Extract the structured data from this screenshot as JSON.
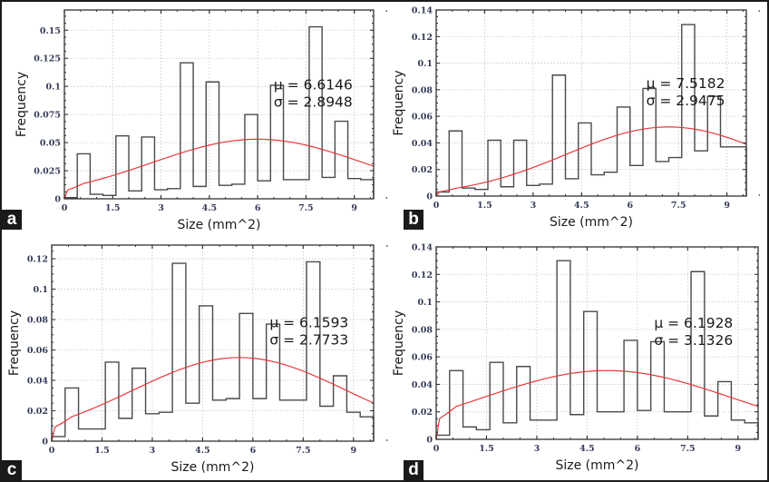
{
  "chart_data": [
    {
      "panel": "a",
      "type": "histogram",
      "xlabel": "Size (mm^2)",
      "ylabel": "Frequency",
      "xlim": [
        0,
        9.6
      ],
      "ylim": [
        0,
        0.168
      ],
      "xticks": [
        0,
        1.5,
        3,
        4.5,
        6,
        7.5,
        9
      ],
      "xtick_labels": [
        "0",
        "1.5",
        "3",
        "4.5",
        "6",
        "7.5",
        "9"
      ],
      "yticks": [
        0,
        0.025,
        0.05,
        0.075,
        0.1,
        0.125,
        0.15
      ],
      "ytick_labels": [
        "0",
        "0.025",
        "0.05",
        "0.075",
        "0.1",
        "0.125",
        "0.15"
      ],
      "grid": true,
      "bin_width": 0.4,
      "values": [
        0.001,
        0.04,
        0.004,
        0.003,
        0.056,
        0.007,
        0.055,
        0.008,
        0.009,
        0.121,
        0.011,
        0.104,
        0.012,
        0.013,
        0.075,
        0.016,
        0.101,
        0.017,
        0.017,
        0.153,
        0.019,
        0.069,
        0.018,
        0.017
      ],
      "fit_curve": {
        "peak": 0.053,
        "center": 6.0,
        "spread": 3.28
      },
      "annotations": [
        "μ = 6.6146",
        "σ = 2.8948"
      ]
    },
    {
      "panel": "b",
      "type": "histogram",
      "xlabel": "Size (mm^2)",
      "ylabel": "Frequency",
      "xlim": [
        0,
        9.6
      ],
      "ylim": [
        0,
        0.14
      ],
      "xticks": [
        0,
        1.5,
        3,
        4.5,
        6,
        7.5,
        9
      ],
      "xtick_labels": [
        "0",
        "1.5",
        "3",
        "4.5",
        "6",
        "7.5",
        "9"
      ],
      "yticks": [
        0,
        0.02,
        0.04,
        0.06,
        0.08,
        0.1,
        0.12,
        0.14
      ],
      "ytick_labels": [
        "0",
        "0.02",
        "0.04",
        "0.06",
        "0.08",
        "0.1",
        "0.12",
        "0.14"
      ],
      "grid": true,
      "bin_width": 0.4,
      "values": [
        0.003,
        0.049,
        0.006,
        0.005,
        0.042,
        0.007,
        0.042,
        0.008,
        0.009,
        0.091,
        0.013,
        0.055,
        0.016,
        0.018,
        0.067,
        0.023,
        0.081,
        0.026,
        0.029,
        0.129,
        0.034,
        0.075,
        0.037,
        0.037
      ],
      "fit_curve": {
        "peak": 0.052,
        "center": 7.2,
        "spread": 3.16
      },
      "annotations": [
        "μ = 7.5182",
        "σ = 2.9475"
      ]
    },
    {
      "panel": "c",
      "type": "histogram",
      "xlabel": "Size (mm^2)",
      "ylabel": "Frequency",
      "xlim": [
        0,
        9.6
      ],
      "ylim": [
        0,
        0.129
      ],
      "xticks": [
        0,
        1.5,
        3,
        4.5,
        6,
        7.5,
        9
      ],
      "xtick_labels": [
        "0",
        "1.5",
        "3",
        "4.5",
        "6",
        "7.5",
        "9"
      ],
      "yticks": [
        0,
        0.02,
        0.04,
        0.06,
        0.08,
        0.1,
        0.12
      ],
      "ytick_labels": [
        "0",
        "0.02",
        "0.04",
        "0.06",
        "0.08",
        "0.1",
        "0.12"
      ],
      "grid": true,
      "bin_width": 0.4,
      "values": [
        0.003,
        0.035,
        0.008,
        0.008,
        0.052,
        0.015,
        0.048,
        0.018,
        0.019,
        0.117,
        0.025,
        0.089,
        0.027,
        0.028,
        0.084,
        0.028,
        0.077,
        0.027,
        0.027,
        0.118,
        0.023,
        0.043,
        0.019,
        0.016
      ],
      "fit_curve": {
        "peak": 0.055,
        "center": 5.6,
        "spread": 3.19
      },
      "annotations": [
        "μ = 6.1593",
        "σ = 2.7733"
      ]
    },
    {
      "panel": "d",
      "type": "histogram",
      "xlabel": "Size (mm^2)",
      "ylabel": "Frequency",
      "xlim": [
        0,
        9.6
      ],
      "ylim": [
        0,
        0.14
      ],
      "xticks": [
        0,
        1.5,
        3,
        4.5,
        6,
        7.5,
        9
      ],
      "xtick_labels": [
        "0",
        "1.5",
        "3",
        "4.5",
        "6",
        "7.5",
        "9"
      ],
      "yticks": [
        0,
        0.02,
        0.04,
        0.06,
        0.08,
        0.1,
        0.12,
        0.14
      ],
      "ytick_labels": [
        "0",
        "0.02",
        "0.04",
        "0.06",
        "0.08",
        "0.1",
        "0.12",
        "0.14"
      ],
      "grid": true,
      "bin_width": 0.4,
      "values": [
        0.003,
        0.05,
        0.009,
        0.007,
        0.056,
        0.012,
        0.053,
        0.014,
        0.014,
        0.13,
        0.018,
        0.093,
        0.02,
        0.02,
        0.072,
        0.021,
        0.071,
        0.02,
        0.02,
        0.122,
        0.017,
        0.042,
        0.014,
        0.012
      ],
      "fit_curve": {
        "peak": 0.05,
        "center": 5.1,
        "spread": 3.71
      },
      "annotations": [
        "μ = 6.1928",
        "σ = 3.1326"
      ]
    }
  ],
  "colors": {
    "histogram": "#4a4a4a",
    "fit_curve": "#e8383d",
    "grid": "#c8c8c8",
    "tag_bg": "#1a1a1a"
  }
}
